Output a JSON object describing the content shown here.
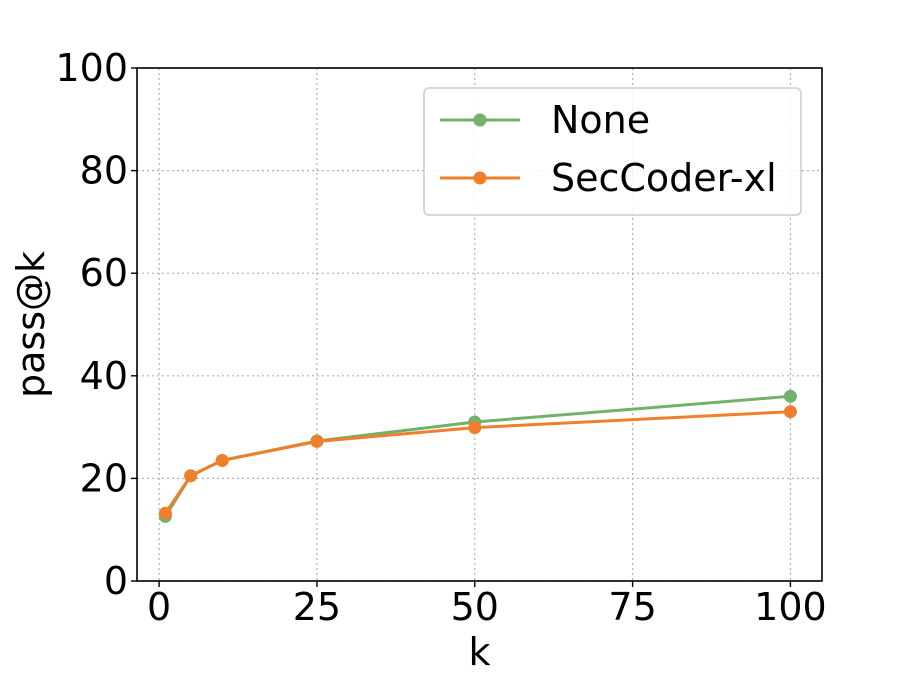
{
  "chart_data": {
    "type": "line",
    "xlabel": "k",
    "ylabel": "pass@k",
    "xlim": [
      -3.5,
      105
    ],
    "ylim": [
      0,
      100
    ],
    "xticks": [
      "0",
      "25",
      "50",
      "75",
      "100"
    ],
    "yticks": [
      "0",
      "20",
      "40",
      "60",
      "80",
      "100"
    ],
    "grid": true,
    "legend_position": "top-right",
    "series": [
      {
        "name": "None",
        "color": "#72b16a",
        "x": [
          1,
          5,
          10,
          25,
          50,
          100
        ],
        "y": [
          12.6,
          20.5,
          23.5,
          27.3,
          31.0,
          36.0
        ]
      },
      {
        "name": "SecCoder-xl",
        "color": "#f07f2b",
        "x": [
          1,
          5,
          10,
          25,
          50,
          100
        ],
        "y": [
          13.2,
          20.5,
          23.5,
          27.2,
          29.9,
          33.0
        ]
      }
    ]
  }
}
